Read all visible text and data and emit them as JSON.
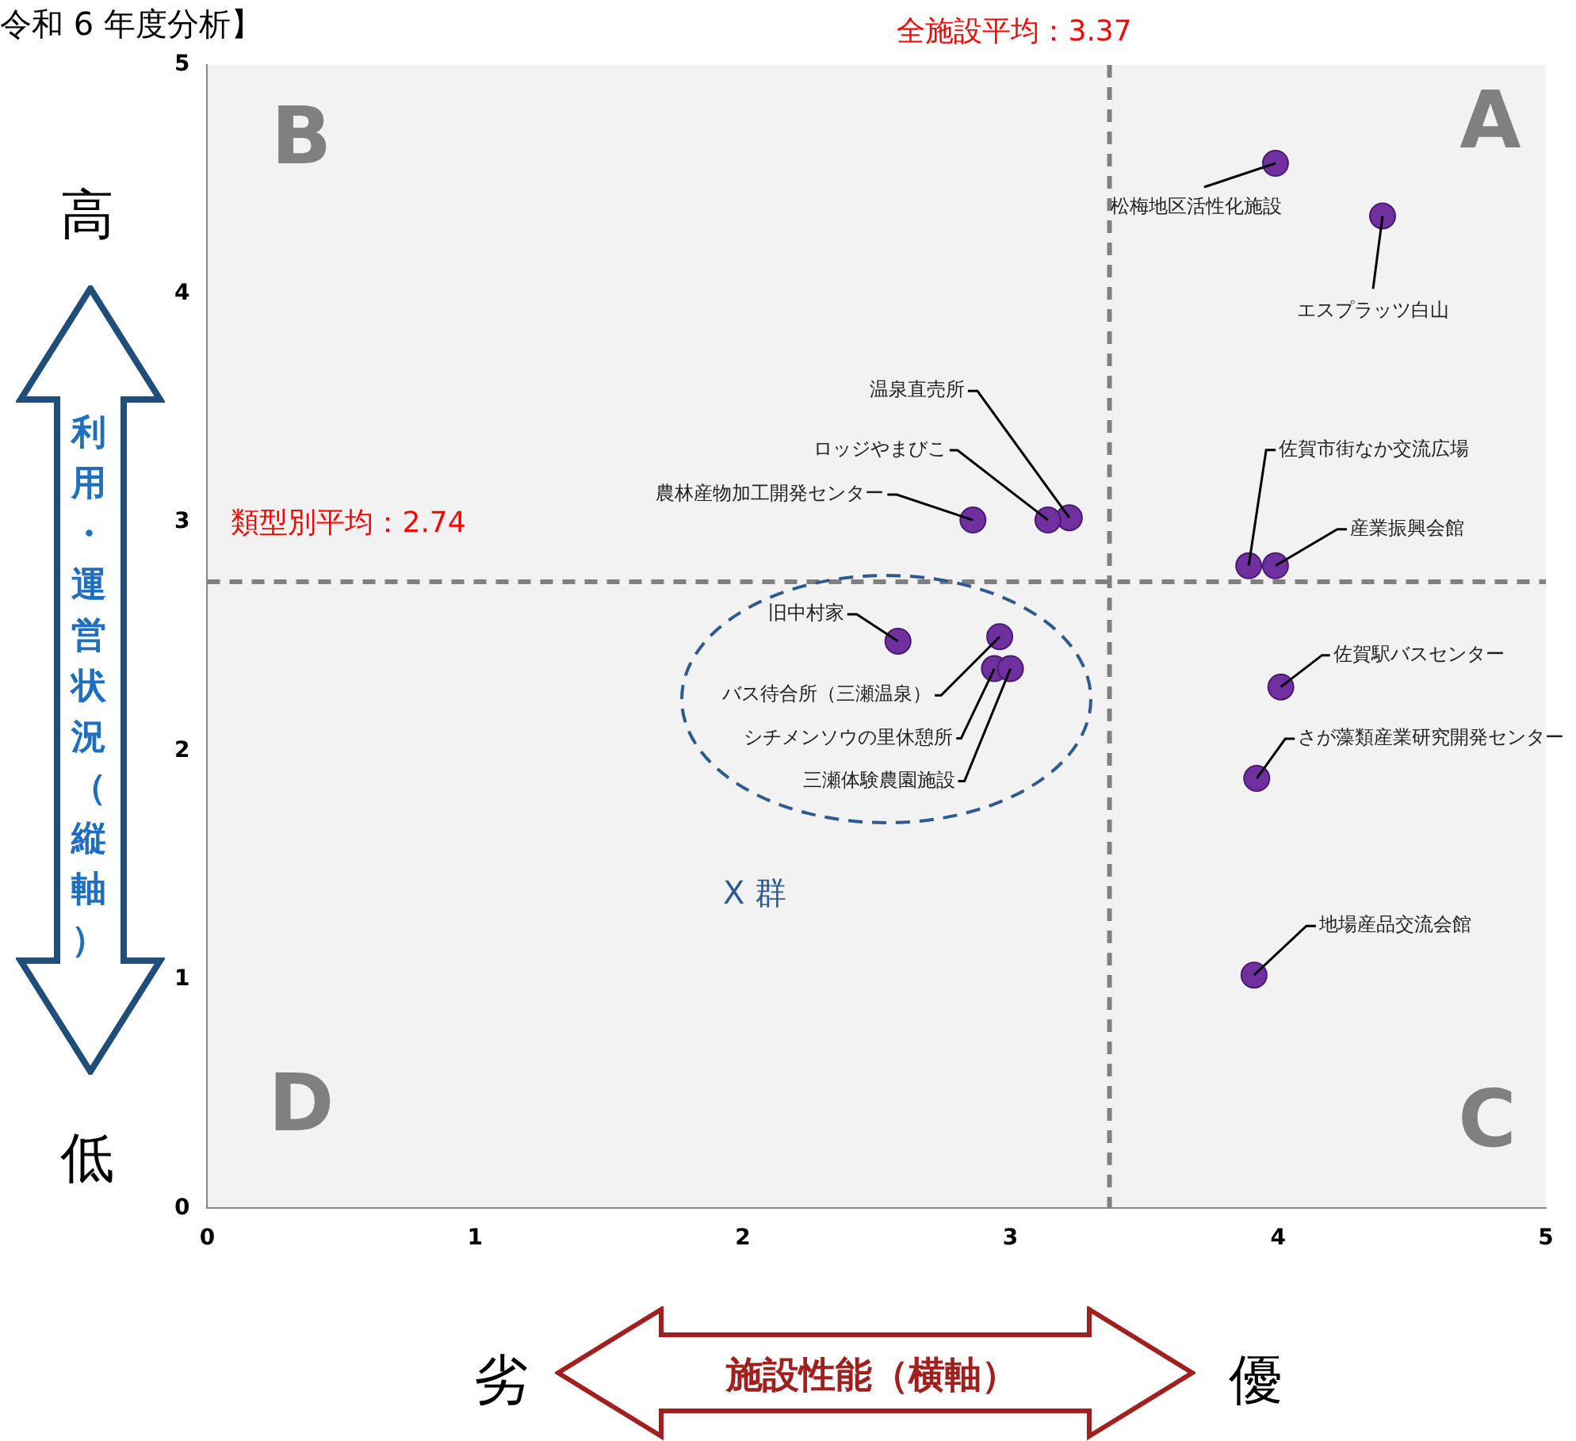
{
  "chart_data": {
    "type": "scatter",
    "title": "令和 6 年度分析】",
    "xlabel": "施設性能（横軸）",
    "ylabel": "利用・運営状況（縦軸）",
    "x": [
      3.99,
      4.39,
      3.22,
      3.14,
      2.86,
      3.89,
      3.99,
      2.58,
      2.96,
      2.94,
      3.0,
      4.01,
      3.92,
      3.91
    ],
    "series": [
      {
        "color": "#7030a0",
        "values": [
          4.57,
          4.34,
          3.02,
          3.01,
          3.01,
          2.81,
          2.81,
          2.48,
          2.5,
          2.36,
          2.36,
          2.28,
          1.88,
          1.02
        ]
      }
    ],
    "xlim": [
      0,
      5
    ],
    "ylim": [
      0,
      5
    ],
    "xticks": [
      0,
      1,
      2,
      3,
      4,
      5
    ],
    "yticks": [
      0,
      1,
      2,
      3,
      4,
      5
    ],
    "grid": false,
    "legend": false,
    "marker": "circle",
    "ref_lines": [
      {
        "axis": "x",
        "value": 3.37,
        "label": "全施設平均：3.37",
        "color": "#808080",
        "line_style": "dashed"
      },
      {
        "axis": "y",
        "value": 2.74,
        "label": "類型別平均：2.74",
        "color": "#808080",
        "line_style": "dashed"
      }
    ],
    "annotations": [
      {
        "text": "松梅地区活性化施設",
        "x": 3.99,
        "y": 4.57
      },
      {
        "text": "エスプラッツ白山",
        "x": 4.39,
        "y": 4.34
      },
      {
        "text": "温泉直売所",
        "x": 3.22,
        "y": 3.02
      },
      {
        "text": "ロッジやまびこ",
        "x": 3.14,
        "y": 3.01
      },
      {
        "text": "農林産物加工開発センター",
        "x": 2.86,
        "y": 3.01
      },
      {
        "text": "佐賀市街なか交流広場",
        "x": 3.89,
        "y": 2.81
      },
      {
        "text": "産業振興会館",
        "x": 3.99,
        "y": 2.81
      },
      {
        "text": "旧中村家",
        "x": 2.58,
        "y": 2.48
      },
      {
        "text": "バス待合所（三瀬温泉）",
        "x": 2.96,
        "y": 2.5
      },
      {
        "text": "シチメンソウの里休憩所",
        "x": 2.94,
        "y": 2.36
      },
      {
        "text": "三瀬体験農園施設",
        "x": 3.0,
        "y": 2.36
      },
      {
        "text": "佐賀駅バスセンター",
        "x": 4.01,
        "y": 2.28
      },
      {
        "text": "さが藻類産業研究開発センター",
        "x": 3.92,
        "y": 1.88
      },
      {
        "text": "地場産品交流会館",
        "x": 3.91,
        "y": 1.02
      },
      "A",
      "B",
      "C",
      "D",
      "X 群",
      "高",
      "低",
      "劣",
      "優"
    ]
  }
}
